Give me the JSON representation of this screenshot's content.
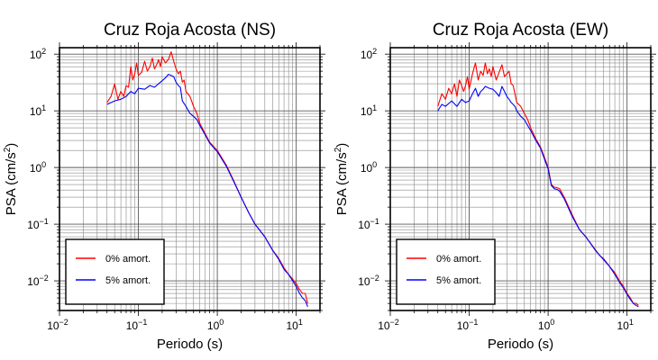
{
  "chart_data": [
    {
      "type": "line",
      "title": "Cruz Roja Acosta (NS)",
      "xlabel": "Periodo (s)",
      "ylabel": "PSA (cm/s²)",
      "ylabel_base": "PSA (cm/s",
      "ylabel_sup": "2",
      "ylabel_end": ")",
      "xscale": "log",
      "yscale": "log",
      "xlim": [
        0.01,
        20
      ],
      "ylim": [
        0.003,
        130
      ],
      "grid": true,
      "legend_position": "bottom-left",
      "x_ticks": [
        {
          "base": "10",
          "exp": "−2"
        },
        {
          "base": "10",
          "exp": "−1"
        },
        {
          "base": "10",
          "exp": "0"
        },
        {
          "base": "10",
          "exp": "1"
        }
      ],
      "y_ticks": [
        {
          "base": "10",
          "exp": "−2"
        },
        {
          "base": "10",
          "exp": "−1"
        },
        {
          "base": "10",
          "exp": "0"
        },
        {
          "base": "10",
          "exp": "1"
        },
        {
          "base": "10",
          "exp": "2"
        }
      ],
      "series": [
        {
          "name": "0% amort.",
          "color": "#ff0000",
          "points": [
            [
              0.04,
              14
            ],
            [
              0.045,
              18
            ],
            [
              0.05,
              30
            ],
            [
              0.055,
              16
            ],
            [
              0.06,
              22
            ],
            [
              0.065,
              18
            ],
            [
              0.07,
              28
            ],
            [
              0.075,
              26
            ],
            [
              0.08,
              60
            ],
            [
              0.085,
              35
            ],
            [
              0.09,
              45
            ],
            [
              0.095,
              70
            ],
            [
              0.1,
              42
            ],
            [
              0.11,
              48
            ],
            [
              0.12,
              75
            ],
            [
              0.13,
              50
            ],
            [
              0.14,
              60
            ],
            [
              0.15,
              85
            ],
            [
              0.16,
              55
            ],
            [
              0.17,
              65
            ],
            [
              0.18,
              80
            ],
            [
              0.19,
              60
            ],
            [
              0.2,
              90
            ],
            [
              0.22,
              70
            ],
            [
              0.24,
              80
            ],
            [
              0.26,
              110
            ],
            [
              0.28,
              75
            ],
            [
              0.3,
              55
            ],
            [
              0.32,
              45
            ],
            [
              0.34,
              50
            ],
            [
              0.36,
              32
            ],
            [
              0.38,
              35
            ],
            [
              0.4,
              22
            ],
            [
              0.45,
              18
            ],
            [
              0.5,
              12
            ],
            [
              0.55,
              9
            ],
            [
              0.6,
              6
            ],
            [
              0.7,
              4
            ],
            [
              0.8,
              2.8
            ],
            [
              1,
              2
            ],
            [
              1.3,
              1.1
            ],
            [
              1.6,
              0.6
            ],
            [
              2,
              0.3
            ],
            [
              2.5,
              0.16
            ],
            [
              3,
              0.1
            ],
            [
              4,
              0.06
            ],
            [
              5,
              0.035
            ],
            [
              6,
              0.025
            ],
            [
              7,
              0.017
            ],
            [
              8,
              0.013
            ],
            [
              10,
              0.009
            ],
            [
              11,
              0.007
            ],
            [
              12,
              0.006
            ],
            [
              13,
              0.006
            ],
            [
              14,
              0.004
            ]
          ]
        },
        {
          "name": "5% amort.",
          "color": "#0000ff",
          "points": [
            [
              0.04,
              13
            ],
            [
              0.05,
              15
            ],
            [
              0.06,
              16
            ],
            [
              0.07,
              18
            ],
            [
              0.08,
              22
            ],
            [
              0.09,
              20
            ],
            [
              0.1,
              25
            ],
            [
              0.12,
              24
            ],
            [
              0.14,
              28
            ],
            [
              0.16,
              26
            ],
            [
              0.18,
              30
            ],
            [
              0.2,
              34
            ],
            [
              0.22,
              38
            ],
            [
              0.24,
              44
            ],
            [
              0.26,
              42
            ],
            [
              0.28,
              40
            ],
            [
              0.3,
              32
            ],
            [
              0.32,
              28
            ],
            [
              0.34,
              26
            ],
            [
              0.36,
              15
            ],
            [
              0.4,
              12
            ],
            [
              0.45,
              9
            ],
            [
              0.5,
              8
            ],
            [
              0.55,
              7
            ],
            [
              0.6,
              5.5
            ],
            [
              0.7,
              3.8
            ],
            [
              0.8,
              2.7
            ],
            [
              1,
              1.9
            ],
            [
              1.3,
              1.05
            ],
            [
              1.6,
              0.58
            ],
            [
              2,
              0.3
            ],
            [
              2.5,
              0.16
            ],
            [
              3,
              0.1
            ],
            [
              4,
              0.06
            ],
            [
              5,
              0.035
            ],
            [
              6,
              0.024
            ],
            [
              7,
              0.016
            ],
            [
              8,
              0.013
            ],
            [
              10,
              0.008
            ],
            [
              11,
              0.006
            ],
            [
              12,
              0.005
            ],
            [
              13,
              0.0045
            ],
            [
              14,
              0.0035
            ]
          ]
        }
      ]
    },
    {
      "type": "line",
      "title": "Cruz Roja Acosta (EW)",
      "xlabel": "Periodo (s)",
      "ylabel": "PSA (cm/s²)",
      "ylabel_base": "PSA (cm/s",
      "ylabel_sup": "2",
      "ylabel_end": ")",
      "xscale": "log",
      "yscale": "log",
      "xlim": [
        0.01,
        20
      ],
      "ylim": [
        0.003,
        130
      ],
      "grid": true,
      "legend_position": "bottom-left",
      "x_ticks": [
        {
          "base": "10",
          "exp": "−2"
        },
        {
          "base": "10",
          "exp": "−1"
        },
        {
          "base": "10",
          "exp": "0"
        },
        {
          "base": "10",
          "exp": "1"
        }
      ],
      "y_ticks": [
        {
          "base": "10",
          "exp": "−2"
        },
        {
          "base": "10",
          "exp": "−1"
        },
        {
          "base": "10",
          "exp": "0"
        },
        {
          "base": "10",
          "exp": "1"
        },
        {
          "base": "10",
          "exp": "2"
        }
      ],
      "series": [
        {
          "name": "0% amort.",
          "color": "#ff0000",
          "points": [
            [
              0.04,
              12
            ],
            [
              0.045,
              20
            ],
            [
              0.05,
              16
            ],
            [
              0.055,
              25
            ],
            [
              0.06,
              20
            ],
            [
              0.065,
              30
            ],
            [
              0.07,
              18
            ],
            [
              0.075,
              35
            ],
            [
              0.08,
              28
            ],
            [
              0.085,
              22
            ],
            [
              0.09,
              28
            ],
            [
              0.095,
              40
            ],
            [
              0.1,
              24
            ],
            [
              0.11,
              45
            ],
            [
              0.12,
              70
            ],
            [
              0.13,
              35
            ],
            [
              0.14,
              50
            ],
            [
              0.15,
              42
            ],
            [
              0.16,
              70
            ],
            [
              0.17,
              45
            ],
            [
              0.18,
              55
            ],
            [
              0.19,
              40
            ],
            [
              0.2,
              60
            ],
            [
              0.22,
              35
            ],
            [
              0.24,
              48
            ],
            [
              0.26,
              65
            ],
            [
              0.28,
              40
            ],
            [
              0.3,
              45
            ],
            [
              0.32,
              50
            ],
            [
              0.34,
              30
            ],
            [
              0.36,
              28
            ],
            [
              0.38,
              20
            ],
            [
              0.4,
              14
            ],
            [
              0.45,
              12
            ],
            [
              0.5,
              9
            ],
            [
              0.55,
              7
            ],
            [
              0.6,
              5
            ],
            [
              0.7,
              3.2
            ],
            [
              0.8,
              2.3
            ],
            [
              0.9,
              1.5
            ],
            [
              1,
              1.0
            ],
            [
              1.1,
              0.5
            ],
            [
              1.2,
              0.45
            ],
            [
              1.3,
              0.44
            ],
            [
              1.4,
              0.42
            ],
            [
              1.6,
              0.3
            ],
            [
              2,
              0.15
            ],
            [
              2.5,
              0.08
            ],
            [
              3,
              0.06
            ],
            [
              4,
              0.035
            ],
            [
              4.5,
              0.028
            ],
            [
              5,
              0.025
            ],
            [
              6,
              0.018
            ],
            [
              7,
              0.014
            ],
            [
              8,
              0.01
            ],
            [
              9,
              0.008
            ],
            [
              10,
              0.006
            ],
            [
              11,
              0.005
            ],
            [
              12,
              0.004
            ],
            [
              13,
              0.004
            ],
            [
              14,
              0.0037
            ]
          ]
        },
        {
          "name": "5% amort.",
          "color": "#0000ff",
          "points": [
            [
              0.04,
              10
            ],
            [
              0.045,
              13
            ],
            [
              0.05,
              12
            ],
            [
              0.06,
              15
            ],
            [
              0.07,
              12
            ],
            [
              0.08,
              16
            ],
            [
              0.09,
              14
            ],
            [
              0.1,
              15
            ],
            [
              0.11,
              20
            ],
            [
              0.12,
              25
            ],
            [
              0.13,
              18
            ],
            [
              0.14,
              22
            ],
            [
              0.15,
              24
            ],
            [
              0.16,
              27
            ],
            [
              0.18,
              25
            ],
            [
              0.2,
              24
            ],
            [
              0.22,
              21
            ],
            [
              0.24,
              18
            ],
            [
              0.26,
              27
            ],
            [
              0.28,
              22
            ],
            [
              0.3,
              18
            ],
            [
              0.32,
              16
            ],
            [
              0.34,
              14
            ],
            [
              0.36,
              13
            ],
            [
              0.38,
              12
            ],
            [
              0.4,
              10
            ],
            [
              0.45,
              8
            ],
            [
              0.5,
              7
            ],
            [
              0.55,
              5.5
            ],
            [
              0.6,
              4.5
            ],
            [
              0.7,
              3
            ],
            [
              0.8,
              2.2
            ],
            [
              0.9,
              1.4
            ],
            [
              1,
              0.95
            ],
            [
              1.1,
              0.48
            ],
            [
              1.2,
              0.42
            ],
            [
              1.3,
              0.41
            ],
            [
              1.4,
              0.38
            ],
            [
              1.6,
              0.28
            ],
            [
              2,
              0.14
            ],
            [
              2.5,
              0.08
            ],
            [
              3,
              0.06
            ],
            [
              4,
              0.034
            ],
            [
              5,
              0.024
            ],
            [
              6,
              0.018
            ],
            [
              7,
              0.013
            ],
            [
              8,
              0.0095
            ],
            [
              9,
              0.0075
            ],
            [
              10,
              0.0058
            ],
            [
              11,
              0.0047
            ],
            [
              12,
              0.004
            ],
            [
              13,
              0.0037
            ],
            [
              14,
              0.0035
            ]
          ]
        }
      ]
    }
  ]
}
